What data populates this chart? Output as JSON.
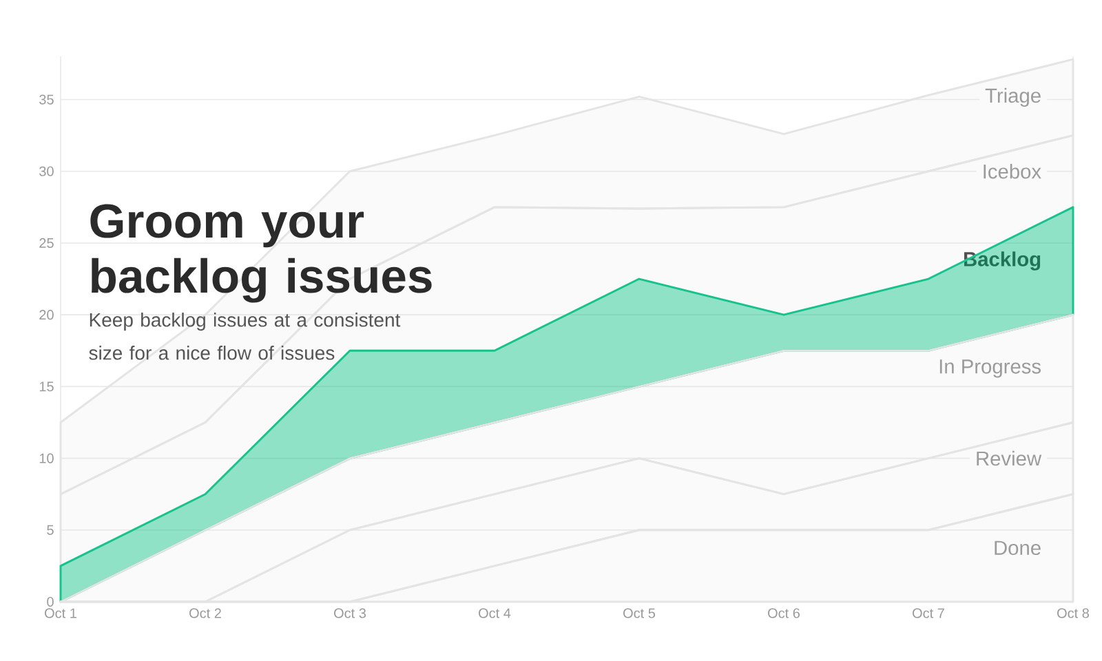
{
  "chart_data": {
    "type": "area",
    "title": "Groom your backlog issues",
    "subtitle": "Keep backlog issues at a consistent size for a nice flow of issues",
    "stacked": true,
    "grid": "y",
    "categories": [
      "Oct 1",
      "Oct 2",
      "Oct 3",
      "Oct 4",
      "Oct 5",
      "Oct 6",
      "Oct 7",
      "Oct 8"
    ],
    "ylim": [
      0,
      38
    ],
    "yticks": [
      0,
      5,
      10,
      15,
      20,
      25,
      30,
      35
    ],
    "series": [
      {
        "name": "Done",
        "color": "#e4e4e4",
        "values": [
          0,
          0,
          0,
          2.5,
          5,
          5,
          5,
          7.5
        ]
      },
      {
        "name": "Review",
        "color": "#e4e4e4",
        "values": [
          0,
          0,
          5,
          5,
          5,
          2.5,
          5,
          5
        ]
      },
      {
        "name": "In Progress",
        "color": "#e4e4e4",
        "values": [
          0,
          5,
          5,
          5,
          5,
          10,
          7.5,
          7.5
        ]
      },
      {
        "name": "Backlog",
        "color": "#17c38a",
        "values": [
          2.5,
          2.5,
          7.5,
          5,
          7.5,
          2.5,
          5,
          7.5
        ]
      },
      {
        "name": "Icebox",
        "color": "#e4e4e4",
        "values": [
          5,
          5,
          5,
          10,
          4.9,
          7.5,
          7.5,
          5
        ]
      },
      {
        "name": "Triage",
        "color": "#e4e4e4",
        "values": [
          5,
          7.5,
          7.5,
          5,
          7.8,
          5.1,
          5.3,
          5.3
        ]
      }
    ]
  }
}
